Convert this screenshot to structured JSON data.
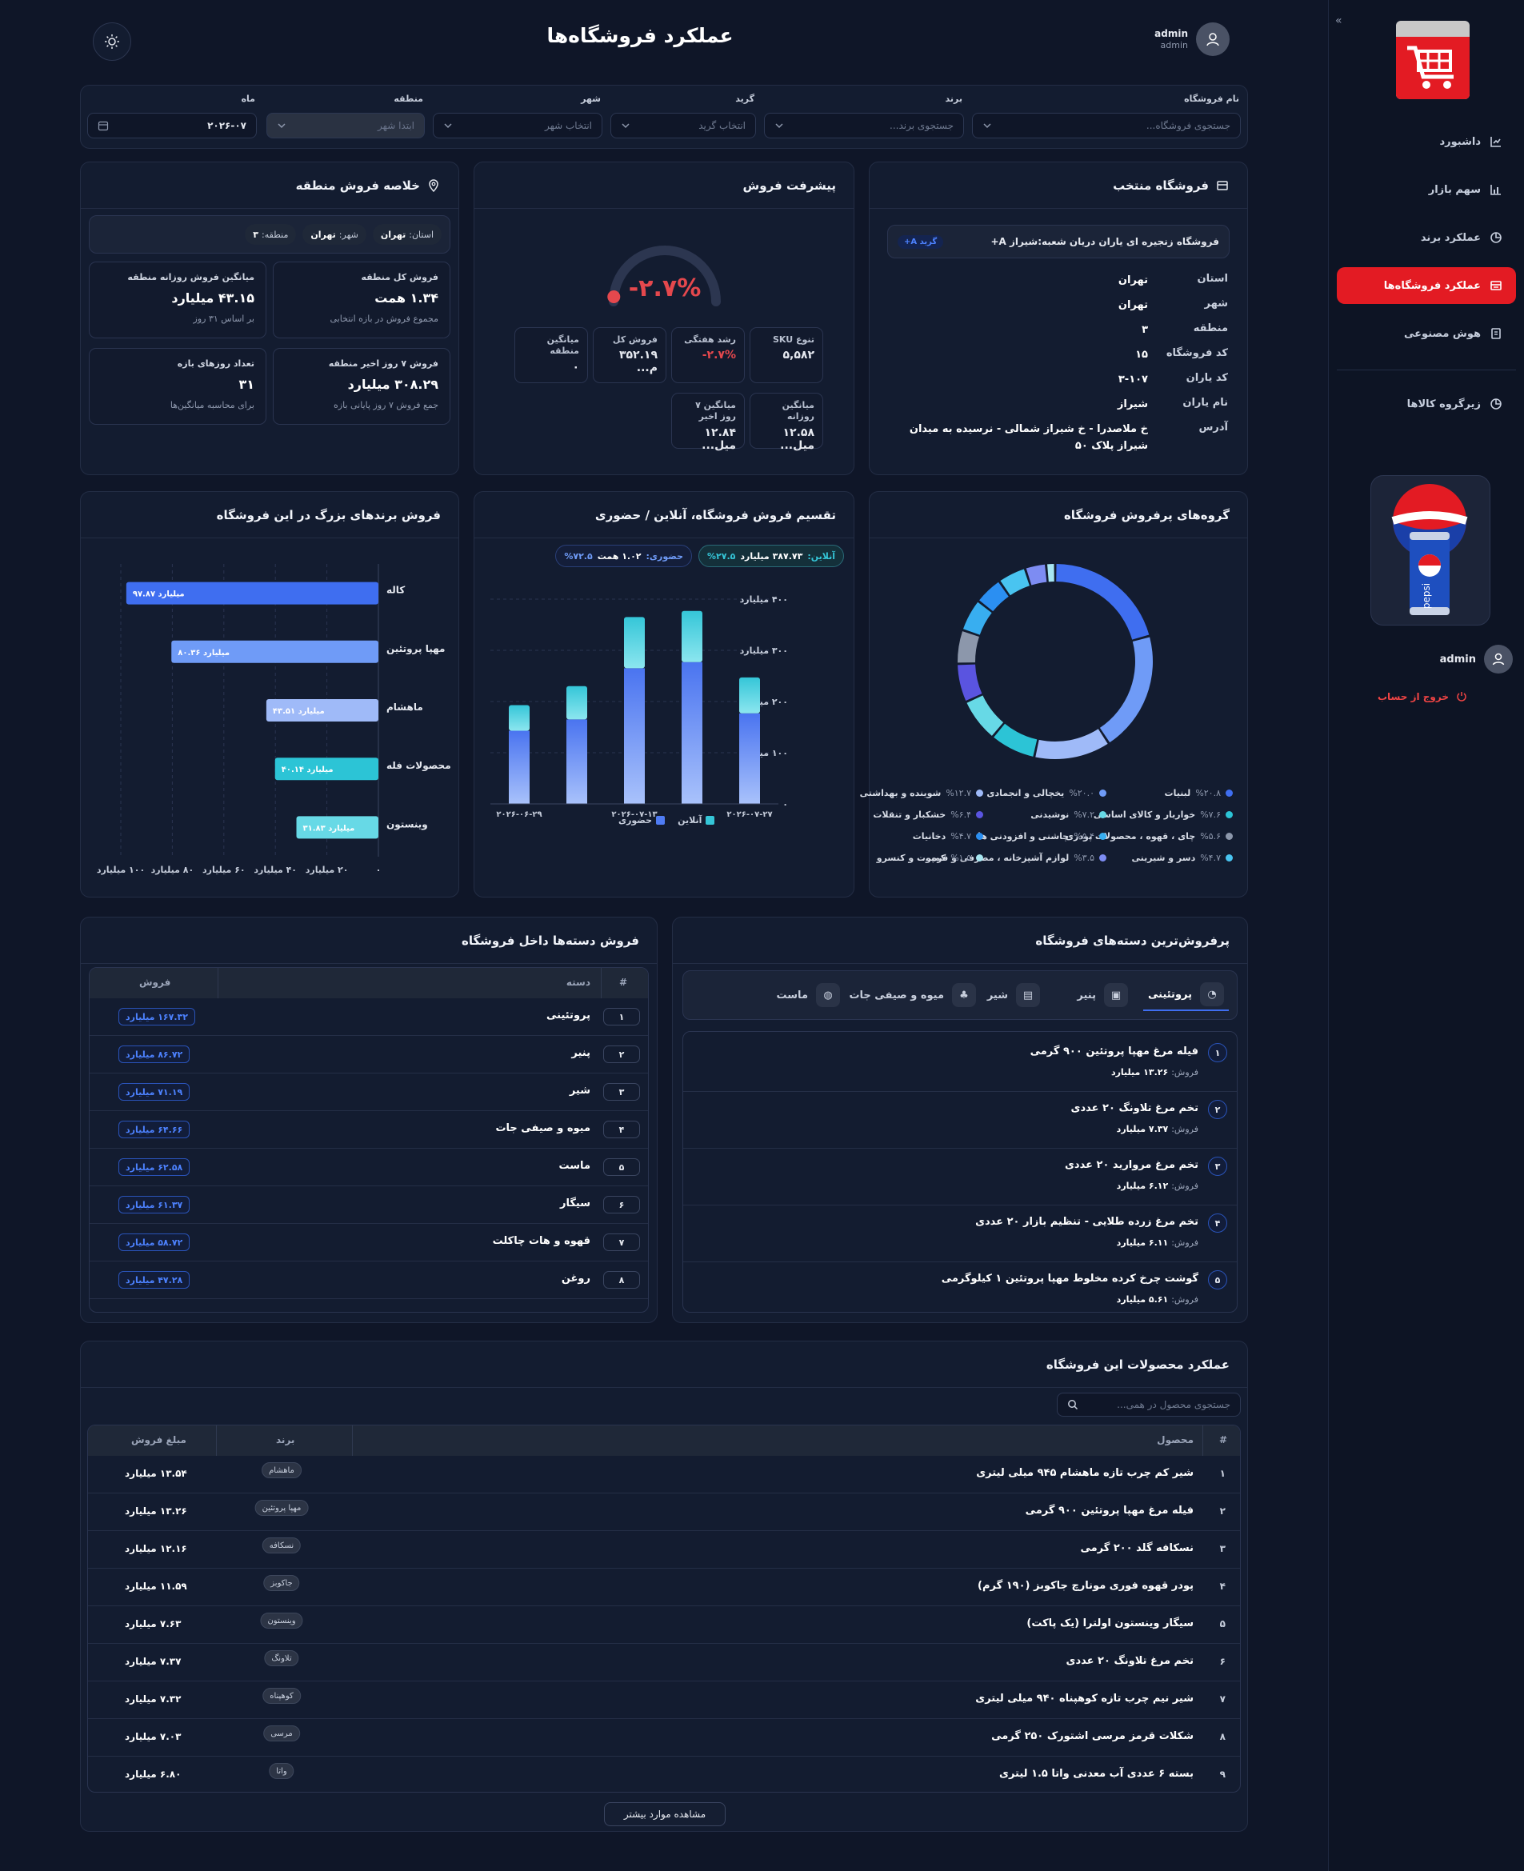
{
  "page": {
    "title": "عملکرد فروشگاه‌ها"
  },
  "user": {
    "name": "admin",
    "role": "admin"
  },
  "sidebar": {
    "collapse_glyph": "»",
    "items": [
      {
        "label": "داشبورد",
        "icon": "chart-icon"
      },
      {
        "label": "سهم بازار",
        "icon": "bar-chart-icon"
      },
      {
        "label": "عملکرد برند",
        "icon": "pie-icon"
      },
      {
        "label": "عملکرد فروشگاه‌ها",
        "icon": "store-icon",
        "active": true
      },
      {
        "label": "هوش مصنوعی",
        "icon": "ai-icon"
      },
      {
        "label": "زیرگروه کالاها",
        "icon": "pie-icon"
      }
    ],
    "user_name": "admin",
    "logout": "خروج از حساب"
  },
  "filters": {
    "store": {
      "label": "نام فروشگاه",
      "placeholder": "جستجوی فروشگاه..."
    },
    "brand": {
      "label": "برند",
      "placeholder": "جستجوی برند..."
    },
    "grade": {
      "label": "گرید",
      "placeholder": "انتخاب گرید"
    },
    "city": {
      "label": "شهر",
      "placeholder": "انتخاب شهر"
    },
    "region": {
      "label": "منطقه",
      "placeholder": "ابتدا شهر"
    },
    "month": {
      "label": "ماه",
      "value": "۲۰۲۶-۰۷"
    }
  },
  "store_card": {
    "title": "فروشگاه منتخب",
    "name": "فروشگاه زنجیره ای یاران دریان شعبه:شیراز A+",
    "grade_badge": "گرید A+",
    "rows": [
      {
        "k": "استان",
        "v": "تهران"
      },
      {
        "k": "شهر",
        "v": "تهران"
      },
      {
        "k": "منطقه",
        "v": "۳"
      },
      {
        "k": "کد فروشگاه",
        "v": "۱۵"
      },
      {
        "k": "کد یاران",
        "v": "۳-۱۰۷"
      },
      {
        "k": "نام یاران",
        "v": "شیراز"
      },
      {
        "k": "آدرس",
        "v": "خ ملاصدرا - خ شیراز شمالی - نرسیده به میدان شیراز پلاک ۵۰"
      }
    ]
  },
  "progress": {
    "title": "پیشرفت فروش",
    "gauge_value": "-۲.۷%",
    "gauge_fraction": 0.03,
    "stats": [
      {
        "t": "تنوع SKU",
        "v": "۵,۵۸۲"
      },
      {
        "t": "رشد هفتگی",
        "v": "-۲.۷%"
      },
      {
        "t": "فروش کل",
        "v": "۳۵۲.۱۹ م..."
      },
      {
        "t": "میانگین منطقه",
        "v": "۰"
      },
      {
        "t": "میانگین روزانه",
        "v": "۱۲.۵۸ میل..."
      },
      {
        "t": "میانگین ۷ روز اخیر",
        "v": "۱۲.۸۴ میل..."
      }
    ]
  },
  "region": {
    "title": "خلاصه فروش منطقه",
    "pills": [
      {
        "k": "استان:",
        "v": "تهران"
      },
      {
        "k": "شهر:",
        "v": "تهران"
      },
      {
        "k": "منطقه:",
        "v": "۳"
      }
    ],
    "boxes": [
      {
        "t": "فروش کل منطقه",
        "v": "۱.۳۴ همت",
        "s": "مجموع فروش در بازه انتخابی"
      },
      {
        "t": "میانگین فروش روزانه منطقه",
        "v": "۴۳.۱۵ میلیارد",
        "s": "بر اساس ۳۱ روز"
      },
      {
        "t": "فروش ۷ روز اخیر منطقه",
        "v": "۳۰۸.۲۹ میلیارد",
        "s": "جمع فروش ۷ روز پایانی بازه"
      },
      {
        "t": "تعداد روزهای بازه",
        "v": "۳۱",
        "s": "برای محاسبه میانگین‌ها"
      }
    ]
  },
  "donut": {
    "title": "گروه‌های پرفروش فروشگاه",
    "legend": [
      {
        "p": "%۲۰.۸",
        "n": "لبنیات",
        "c": "#3f6ef0"
      },
      {
        "p": "%۲۰.۰",
        "n": "یخچالی و انجمادی",
        "c": "#6f9bf7"
      },
      {
        "p": "%۱۲.۷",
        "n": "شوینده و بهداشتی",
        "c": "#9fbaf8"
      },
      {
        "p": "%۷.۶",
        "n": "خواربار و کالای اساسی",
        "c": "#2cc4d6"
      },
      {
        "p": "%۷.۲",
        "n": "نوشیدنی",
        "c": "#67d9e6"
      },
      {
        "p": "%۶.۴",
        "n": "خشکبار و تنقلات",
        "c": "#5a54e0"
      },
      {
        "p": "%۵.۶",
        "n": "چای ، قهوه ، محصولات پودری",
        "c": "#8c97ab"
      },
      {
        "p": "%۵.۴",
        "n": "چاشنی و افزودنی ها",
        "c": "#38aef0"
      },
      {
        "p": "%۴.۷",
        "n": "دخانیات",
        "c": "#2b8ff2"
      },
      {
        "p": "%۴.۷",
        "n": "دسر و شیرینی",
        "c": "#49c4f0"
      },
      {
        "p": "%۳.۵",
        "n": "لوازم آشپزخانه ، مصرفی و فره...",
        "c": "#7d8cf2"
      },
      {
        "p": "%۱.۵",
        "n": "کمپوت و کنسرو",
        "c": "#a8e7f2"
      }
    ]
  },
  "split": {
    "title": "تقسیم فروش فروشگاه، آنلاین / حضوری",
    "online_pill": {
      "label": "آنلاین:",
      "value": "۳۸۷.۷۳ میلیارد",
      "pct": "%۲۷.۵"
    },
    "offline_pill": {
      "label": "حضوری:",
      "value": "۱.۰۲ همت",
      "pct": "%۷۲.۵"
    },
    "legend_offline": "حضوری",
    "legend_online": "آنلاین"
  },
  "brands": {
    "title": "فروش برندهای بزرگ در این فروشگاه"
  },
  "chart_data": [
    {
      "type": "bar",
      "stacked": true,
      "x": [
        "۲۰۲۶-۰۷-۲۷",
        "",
        "۲۰۲۶-۰۷-۱۳",
        "",
        "۲۰۲۶-۰۶-۲۹"
      ],
      "series": [
        {
          "name": "حضوری",
          "color": "#4f7cf4",
          "values": [
            177,
            277,
            265,
            165,
            143
          ]
        },
        {
          "name": "آنلاین",
          "color": "#35c6d8",
          "values": [
            70,
            100,
            100,
            65,
            50
          ]
        }
      ],
      "yticks": [
        "۰",
        "۱۰۰ میلیارد",
        "۲۰۰ میلیارد",
        "۳۰۰ میلیارد",
        "۴۰۰ میلیارد"
      ],
      "ylim": [
        0,
        400
      ]
    },
    {
      "type": "bar",
      "orientation": "horizontal",
      "categories": [
        "کاله",
        "مهپا پروتئین",
        "ماهشام",
        "محصولات فله",
        "وینستون"
      ],
      "values": [
        97.87,
        80.36,
        43.51,
        40.14,
        31.83
      ],
      "value_labels": [
        "۹۷.۸۷ میلیارد",
        "۸۰.۳۶ میلیارد",
        "۴۳.۵۱ میلیارد",
        "۴۰.۱۴ میلیارد",
        "۳۱.۸۳ میلیارد"
      ],
      "colors": [
        "#3f6ef0",
        "#6f9bf7",
        "#9fbaf8",
        "#2cc4d6",
        "#67d9e6"
      ],
      "xticks": [
        "۰",
        "۲۰ میلیارد",
        "۴۰ میلیارد",
        "۶۰ میلیارد",
        "۸۰ میلیارد",
        "۱۰۰ میلیارد"
      ],
      "xlim": [
        0,
        100
      ]
    },
    {
      "type": "pie",
      "donut": true,
      "values": [
        20.8,
        20.0,
        12.7,
        7.6,
        7.2,
        6.4,
        5.6,
        5.4,
        4.7,
        4.7,
        3.5,
        1.5
      ]
    }
  ],
  "top_categories": {
    "title": "پرفروش‌ترین دسته‌های فروشگاه",
    "tabs": [
      {
        "label": "پروتئینی",
        "active": true,
        "icon": "protein-icon"
      },
      {
        "label": "پنیر",
        "icon": "cheese-icon"
      },
      {
        "label": "شیر",
        "icon": "milk-icon"
      },
      {
        "label": "میوه و صیفی جات",
        "icon": "fruit-icon"
      },
      {
        "label": "ماست",
        "icon": "yogurt-icon"
      }
    ],
    "sale_label": "فروش:",
    "items": [
      {
        "n": "۱",
        "name": "فیله مرغ مهپا پروتئین ۹۰۰ گرمی",
        "v": "۱۳.۲۶ میلیارد"
      },
      {
        "n": "۲",
        "name": "تخم مرغ تلاونگ ۲۰ عددی",
        "v": "۷.۳۷ میلیارد"
      },
      {
        "n": "۳",
        "name": "تخم مرغ مروارید ۲۰ عددی",
        "v": "۶.۱۲ میلیارد"
      },
      {
        "n": "۴",
        "name": "تخم مرغ زرده طلایی - تنظیم بازار ۲۰ عددی",
        "v": "۶.۱۱ میلیارد"
      },
      {
        "n": "۵",
        "name": "گوشت چرخ کرده مخلوط مهپا پروتئین ۱ کیلوگرمی",
        "v": "۵.۶۱ میلیارد"
      }
    ]
  },
  "cat_sales": {
    "title": "فروش دسته‌ها داخل فروشگاه",
    "headers": {
      "num": "#",
      "cat": "دسته",
      "sale": "فروش"
    },
    "rows": [
      {
        "n": "۱",
        "c": "پروتئینی",
        "v": "۱۶۷.۳۲ میلیارد"
      },
      {
        "n": "۲",
        "c": "پنیر",
        "v": "۸۶.۷۲ میلیارد"
      },
      {
        "n": "۳",
        "c": "شیر",
        "v": "۷۱.۱۹ میلیارد"
      },
      {
        "n": "۴",
        "c": "میوه و صیفی جات",
        "v": "۶۴.۶۶ میلیارد"
      },
      {
        "n": "۵",
        "c": "ماست",
        "v": "۶۲.۵۸ میلیارد"
      },
      {
        "n": "۶",
        "c": "سیگار",
        "v": "۶۱.۳۷ میلیارد"
      },
      {
        "n": "۷",
        "c": "قهوه و هات چاکلت",
        "v": "۵۸.۷۲ میلیارد"
      },
      {
        "n": "۸",
        "c": "روغن",
        "v": "۴۷.۲۸ میلیارد"
      }
    ]
  },
  "products": {
    "title": "عملکرد محصولات این فروشگاه",
    "search_placeholder": "جستجوی محصول در همی...",
    "headers": {
      "num": "#",
      "product": "محصول",
      "brand": "برند",
      "sale": "مبلغ فروش"
    },
    "rows": [
      {
        "n": "۱",
        "p": "شیر کم چرب تازه ماهشام ۹۴۵ میلی لیتری",
        "b": "ماهشام",
        "v": "۱۳.۵۴ میلیارد"
      },
      {
        "n": "۲",
        "p": "فیله مرغ مهپا پروتئین ۹۰۰ گرمی",
        "b": "مهپا پروتئین",
        "v": "۱۳.۲۶ میلیارد"
      },
      {
        "n": "۳",
        "p": "نسکافه گلد ۲۰۰ گرمی",
        "b": "نسکافه",
        "v": "۱۲.۱۶ میلیارد"
      },
      {
        "n": "۴",
        "p": "پودر قهوه فوری مونارچ جاکوبز (۱۹۰ گرم)",
        "b": "جاکوبز",
        "v": "۱۱.۵۹ میلیارد"
      },
      {
        "n": "۵",
        "p": "سیگار وینستون اولترا (یک پاکت)",
        "b": "وینستون",
        "v": "۷.۶۳ میلیارد"
      },
      {
        "n": "۶",
        "p": "تخم مرغ تلاونگ ۲۰ عددی",
        "b": "تلاونگ",
        "v": "۷.۳۷ میلیارد"
      },
      {
        "n": "۷",
        "p": "شیر نیم چرب تازه کوهپناه ۹۴۰ میلی لیتری",
        "b": "کوهپناه",
        "v": "۷.۳۲ میلیارد"
      },
      {
        "n": "۸",
        "p": "شکلات قرمز مرسی اشتورک ۲۵۰ گرمی",
        "b": "مرسی",
        "v": "۷.۰۳ میلیارد"
      },
      {
        "n": "۹",
        "p": "بسته ۶ عددی آب معدنی واتا ۱.۵ لیتری",
        "b": "واتا",
        "v": "۶.۸۰ میلیارد"
      }
    ],
    "more_button": "مشاهده موارد بیشتر"
  },
  "colors": {
    "accent": "#e31b23",
    "blue": "#3f6ef0",
    "cyan": "#35c6d8",
    "danger": "#e5484d"
  }
}
